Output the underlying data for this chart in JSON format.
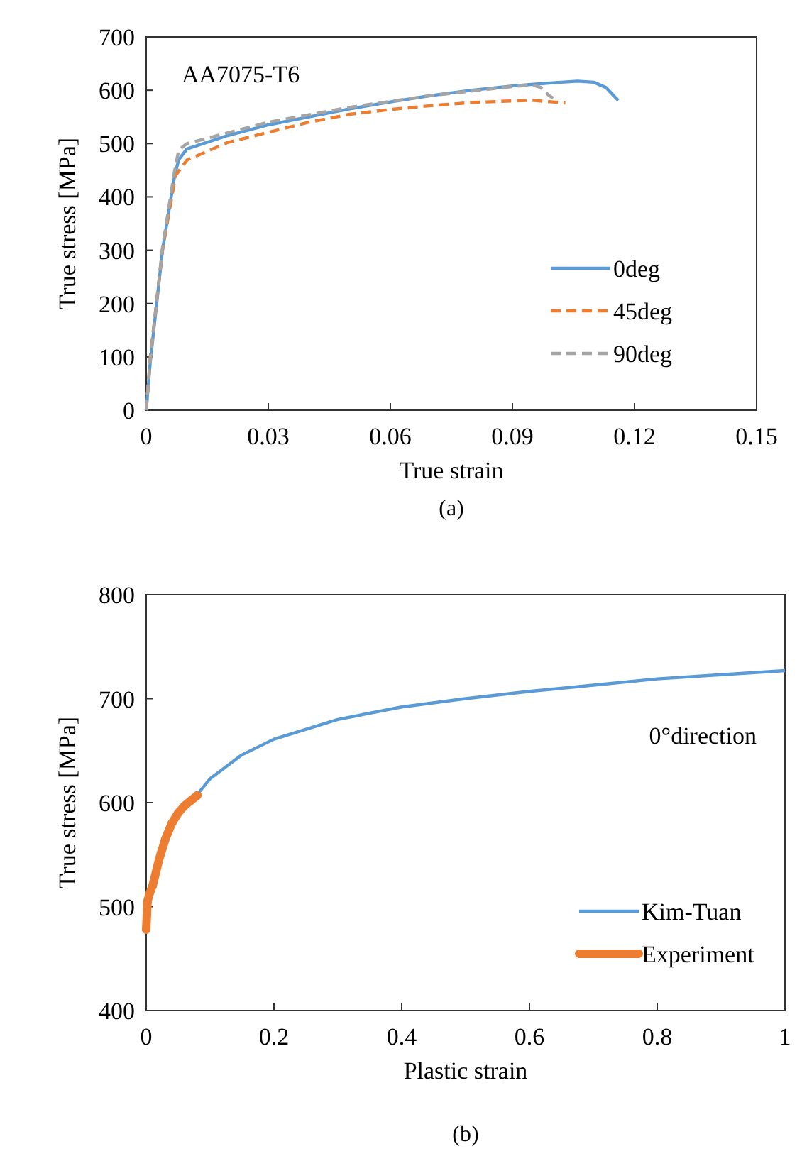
{
  "chart_data": [
    {
      "type": "line",
      "xlabel": "True strain",
      "ylabel": "True stress [MPa]",
      "xlim": [
        0,
        0.15
      ],
      "ylim": [
        0,
        700
      ],
      "xticks": [
        0,
        0.03,
        0.06,
        0.09,
        0.12,
        0.15
      ],
      "yticks": [
        0,
        100,
        200,
        300,
        400,
        500,
        600,
        700
      ],
      "grid": false,
      "legend": "bottom right",
      "annotations": [
        "AA7075-T6",
        "(a)"
      ],
      "series": [
        {
          "name": "0deg",
          "color": "#5b9bd5",
          "line_style": "solid",
          "x": [
            0,
            0.001,
            0.004,
            0.007,
            0.008,
            0.01,
            0.02,
            0.03,
            0.04,
            0.05,
            0.06,
            0.07,
            0.08,
            0.09,
            0.1,
            0.106,
            0.11,
            0.113,
            0.116
          ],
          "values": [
            0,
            90,
            300,
            440,
            470,
            490,
            515,
            535,
            550,
            565,
            578,
            590,
            600,
            608,
            614,
            617,
            615,
            605,
            581
          ]
        },
        {
          "name": "45deg",
          "color": "#ed7d31",
          "line_style": "dashed",
          "x": [
            0,
            0.001,
            0.004,
            0.0072,
            0.01,
            0.02,
            0.03,
            0.04,
            0.05,
            0.06,
            0.07,
            0.08,
            0.09,
            0.095,
            0.1,
            0.103
          ],
          "values": [
            0,
            100,
            300,
            440,
            469,
            502,
            521,
            540,
            555,
            564,
            571,
            577,
            580,
            581,
            578,
            576
          ]
        },
        {
          "name": "90deg",
          "color": "#a5a5a5",
          "line_style": "dashed",
          "x": [
            0,
            0.001,
            0.004,
            0.007,
            0.008,
            0.01,
            0.02,
            0.03,
            0.05,
            0.07,
            0.09,
            0.095,
            0.097,
            0.099,
            0.1
          ],
          "values": [
            0,
            95,
            305,
            450,
            488,
            500,
            520,
            540,
            568,
            590,
            607,
            610,
            605,
            590,
            585
          ]
        }
      ]
    },
    {
      "type": "line",
      "xlabel": "Plastic strain",
      "ylabel": "True stress [MPa]",
      "xlim": [
        0,
        1
      ],
      "ylim": [
        400,
        800
      ],
      "xticks": [
        0,
        0.2,
        0.4,
        0.6,
        0.8,
        1
      ],
      "yticks": [
        400,
        500,
        600,
        700,
        800
      ],
      "grid": false,
      "legend": "bottom right",
      "annotations": [
        "0°direction",
        "(b)"
      ],
      "series": [
        {
          "name": "Kim-Tuan",
          "color": "#5b9bd5",
          "line_style": "solid",
          "x": [
            0.08,
            0.1,
            0.15,
            0.2,
            0.3,
            0.4,
            0.5,
            0.6,
            0.7,
            0.8,
            0.9,
            1
          ],
          "values": [
            608,
            623,
            646,
            661,
            680,
            692,
            700,
            707,
            713,
            719,
            723,
            727
          ]
        },
        {
          "name": "Experiment",
          "color": "#ed7d31",
          "line_style": "solid",
          "marker": "circle",
          "x": [
            0,
            0.002,
            0.005,
            0.01,
            0.02,
            0.03,
            0.04,
            0.05,
            0.06,
            0.07,
            0.08
          ],
          "values": [
            478,
            505,
            512,
            520,
            545,
            565,
            580,
            590,
            597,
            602,
            607
          ]
        }
      ]
    }
  ]
}
